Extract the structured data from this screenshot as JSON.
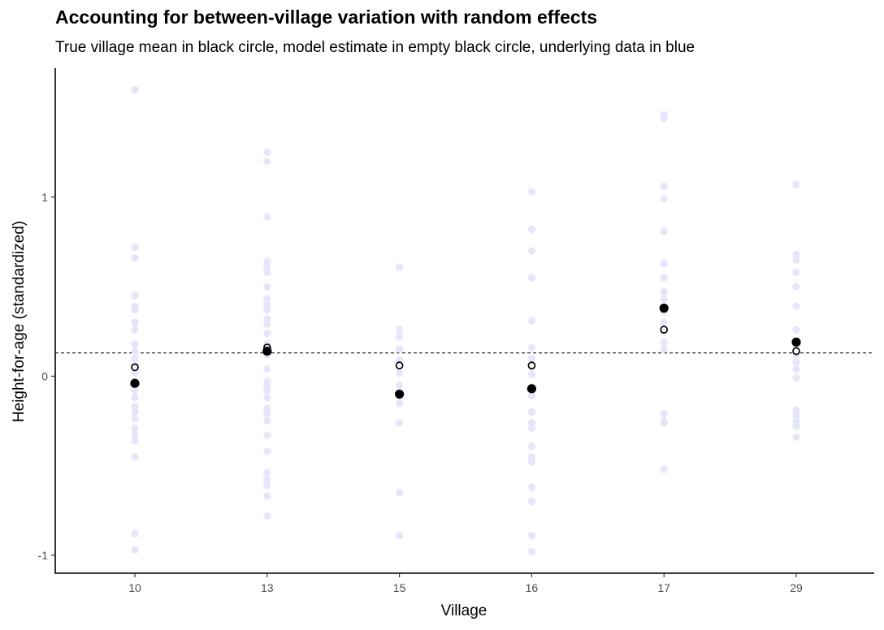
{
  "chart_data": {
    "type": "scatter",
    "title": "Accounting for between-village variation with random effects",
    "subtitle": "True village mean in black circle, model estimate in empty black circle, underlying data in blue",
    "xlabel": "Village",
    "ylabel": "Height-for-age (standardized)",
    "categories": [
      "10",
      "13",
      "15",
      "16",
      "17",
      "29"
    ],
    "ylim": [
      -1.1,
      1.72
    ],
    "yticks": [
      -1,
      0,
      1
    ],
    "ytick_labels": [
      "-1",
      "0",
      "1"
    ],
    "reference_line": 0.13,
    "grid": false,
    "colors": {
      "data": "#e6e6fa",
      "mean": "#000000",
      "estimate": "#000000",
      "reference": "#000000"
    },
    "series": [
      {
        "marker": "light-blue-dot",
        "points": [
          {
            "x": "10",
            "y": [
              1.6,
              0.72,
              0.66,
              0.45,
              0.39,
              0.37,
              0.3,
              0.26,
              0.18,
              0.14,
              0.1,
              0.06,
              0.02,
              -0.03,
              -0.08,
              -0.12,
              -0.17,
              -0.2,
              -0.24,
              -0.29,
              -0.32,
              -0.36,
              -0.45,
              -0.88,
              -0.97
            ]
          },
          {
            "x": "13",
            "y": [
              1.25,
              1.2,
              0.89,
              0.64,
              0.61,
              0.58,
              0.5,
              0.43,
              0.4,
              0.37,
              0.32,
              0.29,
              0.24,
              0.18,
              0.12,
              0.04,
              -0.03,
              -0.06,
              -0.08,
              -0.12,
              -0.18,
              -0.21,
              -0.25,
              -0.33,
              -0.42,
              -0.54,
              -0.58,
              -0.61,
              -0.67,
              -0.78
            ]
          },
          {
            "x": "15",
            "y": [
              0.61,
              0.26,
              0.22,
              0.15,
              0.09,
              0.02,
              -0.05,
              -0.11,
              -0.15,
              -0.26,
              -0.65,
              -0.89
            ]
          },
          {
            "x": "16",
            "y": [
              1.03,
              0.82,
              0.7,
              0.55,
              0.31,
              0.16,
              0.1,
              0.05,
              0.01,
              -0.06,
              -0.11,
              -0.2,
              -0.26,
              -0.29,
              -0.39,
              -0.45,
              -0.48,
              -0.62,
              -0.7,
              -0.89,
              -0.98
            ]
          },
          {
            "x": "17",
            "y": [
              1.46,
              1.44,
              1.06,
              0.99,
              0.81,
              0.63,
              0.55,
              0.47,
              0.43,
              0.36,
              0.3,
              0.25,
              0.19,
              0.15,
              -0.21,
              -0.25,
              -0.26,
              -0.52
            ]
          },
          {
            "x": "29",
            "y": [
              1.07,
              0.68,
              0.65,
              0.58,
              0.5,
              0.39,
              0.26,
              0.2,
              0.16,
              0.12,
              0.08,
              0.04,
              -0.01,
              -0.19,
              -0.22,
              -0.25,
              -0.28,
              -0.34
            ]
          }
        ]
      },
      {
        "marker": "filled-black-circle",
        "points": [
          {
            "x": "10",
            "y": -0.04
          },
          {
            "x": "13",
            "y": 0.14
          },
          {
            "x": "15",
            "y": -0.1
          },
          {
            "x": "16",
            "y": -0.07
          },
          {
            "x": "17",
            "y": 0.38
          },
          {
            "x": "29",
            "y": 0.19
          }
        ]
      },
      {
        "marker": "empty-black-circle",
        "points": [
          {
            "x": "10",
            "y": 0.05
          },
          {
            "x": "13",
            "y": 0.16
          },
          {
            "x": "15",
            "y": 0.06
          },
          {
            "x": "16",
            "y": 0.06
          },
          {
            "x": "17",
            "y": 0.26
          },
          {
            "x": "29",
            "y": 0.14
          }
        ]
      }
    ]
  }
}
